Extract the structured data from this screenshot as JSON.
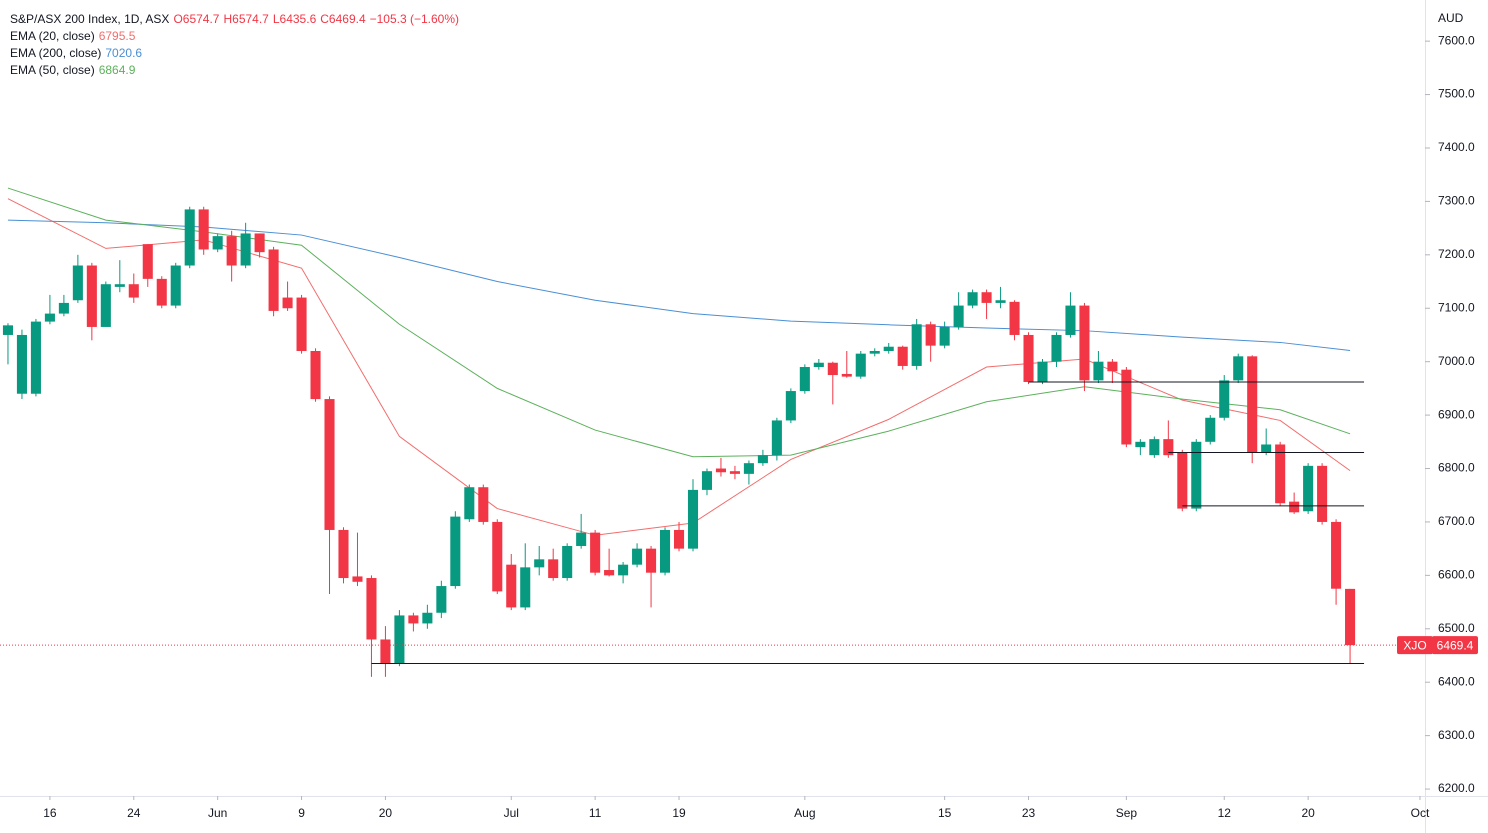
{
  "chart_data": {
    "type": "candlestick",
    "title": "S&P/ASX 200 Index, 1D, ASX",
    "ohlc_labels": [
      "O6574.7",
      "H6574.7",
      "L6435.6",
      "C6469.4",
      "−105.3 (−1.60%)"
    ],
    "symbol": "XJO",
    "y_unit": "AUD",
    "up_color": "#089981",
    "down_color": "#f23645",
    "grid": false,
    "xlim": [
      -0.57,
      101.36
    ],
    "ylim": [
      6187,
      7677
    ],
    "yticks": [
      {
        "value": 6200,
        "label": "6200.0"
      },
      {
        "value": 6300,
        "label": "6300.0"
      },
      {
        "value": 6400,
        "label": "6400.0"
      },
      {
        "value": 6500,
        "label": "6500.0"
      },
      {
        "value": 6600,
        "label": "6600.0"
      },
      {
        "value": 6700,
        "label": "6700.0"
      },
      {
        "value": 6800,
        "label": "6800.0"
      },
      {
        "value": 6900,
        "label": "6900.0"
      },
      {
        "value": 7000,
        "label": "7000.0"
      },
      {
        "value": 7100,
        "label": "7100.0"
      },
      {
        "value": 7200,
        "label": "7200.0"
      },
      {
        "value": 7300,
        "label": "7300.0"
      },
      {
        "value": 7400,
        "label": "7400.0"
      },
      {
        "value": 7500,
        "label": "7500.0"
      },
      {
        "value": 7600,
        "label": "7600.0"
      }
    ],
    "xticks": [
      {
        "value": 3,
        "label": "16"
      },
      {
        "value": 9,
        "label": "24"
      },
      {
        "value": 15,
        "label": "Jun"
      },
      {
        "value": 21,
        "label": "9"
      },
      {
        "value": 27,
        "label": "20"
      },
      {
        "value": 36,
        "label": "Jul"
      },
      {
        "value": 42,
        "label": "11"
      },
      {
        "value": 48,
        "label": "19"
      },
      {
        "value": 57,
        "label": "Aug"
      },
      {
        "value": 67,
        "label": "15"
      },
      {
        "value": 73,
        "label": "23"
      },
      {
        "value": 80,
        "label": "Sep"
      },
      {
        "value": 87,
        "label": "12"
      },
      {
        "value": 93,
        "label": "20"
      },
      {
        "value": 101,
        "label": "Oct"
      }
    ],
    "ohlc": [
      [
        7050,
        7072,
        6995,
        7068
      ],
      [
        6940,
        7060,
        6930,
        7050
      ],
      [
        6940,
        7080,
        6935,
        7075
      ],
      [
        7075,
        7125,
        7070,
        7090
      ],
      [
        7090,
        7125,
        7085,
        7110
      ],
      [
        7115,
        7200,
        7110,
        7180
      ],
      [
        7180,
        7185,
        7040,
        7065
      ],
      [
        7065,
        7150,
        7065,
        7145
      ],
      [
        7140,
        7190,
        7130,
        7145
      ],
      [
        7145,
        7165,
        7110,
        7120
      ],
      [
        7220,
        7220,
        7140,
        7155
      ],
      [
        7155,
        7160,
        7100,
        7105
      ],
      [
        7105,
        7185,
        7100,
        7180
      ],
      [
        7180,
        7290,
        7175,
        7285
      ],
      [
        7285,
        7290,
        7200,
        7210
      ],
      [
        7210,
        7240,
        7205,
        7235
      ],
      [
        7235,
        7245,
        7150,
        7180
      ],
      [
        7180,
        7260,
        7175,
        7240
      ],
      [
        7240,
        7240,
        7195,
        7205
      ],
      [
        7210,
        7215,
        7085,
        7095
      ],
      [
        7120,
        7150,
        7095,
        7100
      ],
      [
        7120,
        7125,
        7015,
        7020
      ],
      [
        7020,
        7025,
        6925,
        6930
      ],
      [
        6930,
        6935,
        6565,
        6685
      ],
      [
        6685,
        6690,
        6585,
        6595
      ],
      [
        6598,
        6680,
        6580,
        6588
      ],
      [
        6595,
        6600,
        6410,
        6480
      ],
      [
        6480,
        6505,
        6410,
        6435
      ],
      [
        6435,
        6535,
        6430,
        6525
      ],
      [
        6525,
        6530,
        6495,
        6510
      ],
      [
        6510,
        6545,
        6500,
        6530
      ],
      [
        6530,
        6590,
        6520,
        6580
      ],
      [
        6580,
        6720,
        6575,
        6710
      ],
      [
        6705,
        6770,
        6700,
        6765
      ],
      [
        6765,
        6770,
        6695,
        6700
      ],
      [
        6700,
        6705,
        6565,
        6570
      ],
      [
        6620,
        6640,
        6535,
        6540
      ],
      [
        6540,
        6660,
        6535,
        6615
      ],
      [
        6615,
        6655,
        6600,
        6630
      ],
      [
        6630,
        6650,
        6590,
        6595
      ],
      [
        6595,
        6660,
        6590,
        6655
      ],
      [
        6655,
        6715,
        6650,
        6680
      ],
      [
        6680,
        6685,
        6600,
        6605
      ],
      [
        6610,
        6650,
        6598,
        6600
      ],
      [
        6600,
        6625,
        6585,
        6620
      ],
      [
        6620,
        6660,
        6615,
        6650
      ],
      [
        6650,
        6655,
        6540,
        6605
      ],
      [
        6605,
        6690,
        6600,
        6685
      ],
      [
        6685,
        6700,
        6645,
        6650
      ],
      [
        6650,
        6780,
        6645,
        6760
      ],
      [
        6760,
        6800,
        6750,
        6795
      ],
      [
        6800,
        6820,
        6785,
        6793
      ],
      [
        6795,
        6805,
        6780,
        6790
      ],
      [
        6790,
        6815,
        6770,
        6810
      ],
      [
        6810,
        6835,
        6805,
        6825
      ],
      [
        6825,
        6895,
        6815,
        6890
      ],
      [
        6890,
        6950,
        6885,
        6945
      ],
      [
        6945,
        6995,
        6940,
        6990
      ],
      [
        6990,
        7005,
        6985,
        6998
      ],
      [
        6998,
        7000,
        6920,
        6975
      ],
      [
        6977,
        7020,
        6970,
        6972
      ],
      [
        6972,
        7020,
        6968,
        7015
      ],
      [
        7015,
        7025,
        7010,
        7020
      ],
      [
        7020,
        7035,
        7015,
        7028
      ],
      [
        7028,
        7030,
        6985,
        6992
      ],
      [
        6992,
        7080,
        6985,
        7070
      ],
      [
        7070,
        7075,
        7000,
        7030
      ],
      [
        7030,
        7075,
        7025,
        7065
      ],
      [
        7065,
        7130,
        7060,
        7105
      ],
      [
        7105,
        7135,
        7100,
        7130
      ],
      [
        7130,
        7135,
        7080,
        7110
      ],
      [
        7110,
        7140,
        7100,
        7115
      ],
      [
        7112,
        7115,
        7040,
        7050
      ],
      [
        7050,
        7055,
        6958,
        6962
      ],
      [
        6962,
        7005,
        6958,
        7000
      ],
      [
        7000,
        7055,
        6990,
        7050
      ],
      [
        7050,
        7130,
        7045,
        7105
      ],
      [
        7105,
        7110,
        6945,
        6965
      ],
      [
        6965,
        7020,
        6960,
        7000
      ],
      [
        7000,
        7005,
        6960,
        6982
      ],
      [
        6985,
        6990,
        6840,
        6845
      ],
      [
        6840,
        6855,
        6825,
        6850
      ],
      [
        6825,
        6860,
        6820,
        6855
      ],
      [
        6855,
        6890,
        6820,
        6825
      ],
      [
        6830,
        6835,
        6720,
        6725
      ],
      [
        6725,
        6855,
        6720,
        6850
      ],
      [
        6850,
        6900,
        6845,
        6895
      ],
      [
        6895,
        6975,
        6890,
        6965
      ],
      [
        6965,
        7015,
        6960,
        7010
      ],
      [
        7010,
        7012,
        6810,
        6830
      ],
      [
        6830,
        6875,
        6825,
        6845
      ],
      [
        6845,
        6850,
        6730,
        6735
      ],
      [
        6738,
        6755,
        6715,
        6718
      ],
      [
        6720,
        6810,
        6715,
        6805
      ],
      [
        6805,
        6810,
        6695,
        6700
      ],
      [
        6700,
        6705,
        6545,
        6575
      ],
      [
        6574.7,
        6574.7,
        6435.6,
        6469.4
      ]
    ],
    "series": [
      {
        "name": "EMA (20, close)",
        "color": "#f26d6d",
        "last_value": 6795.5,
        "x": [
          0,
          7,
          14,
          21,
          28,
          35,
          42,
          49,
          56,
          63,
          70,
          77,
          84,
          91,
          96
        ],
        "values": [
          7305,
          7212,
          7228,
          7175,
          6860,
          6725,
          6675,
          6698,
          6817,
          6892,
          6990,
          7005,
          6928,
          6890,
          6796
        ]
      },
      {
        "name": "EMA (200, close)",
        "color": "#4a8fd4",
        "last_value": 7020.6,
        "x": [
          0,
          7,
          14,
          21,
          28,
          35,
          42,
          49,
          56,
          63,
          70,
          77,
          84,
          91,
          96
        ],
        "values": [
          7265,
          7260,
          7252,
          7237,
          7195,
          7150,
          7115,
          7090,
          7076,
          7069,
          7063,
          7058,
          7046,
          7036,
          7021
        ]
      },
      {
        "name": "EMA (50, close)",
        "color": "#5cb05c",
        "last_value": 6864.9,
        "x": [
          0,
          7,
          14,
          21,
          28,
          35,
          42,
          49,
          56,
          63,
          70,
          77,
          84,
          91,
          96
        ],
        "values": [
          7325,
          7265,
          7243,
          7218,
          7070,
          6950,
          6872,
          6822,
          6825,
          6870,
          6925,
          6953,
          6930,
          6910,
          6865
        ]
      }
    ],
    "levels": [
      {
        "value": 6435,
        "from": 26,
        "to": 97
      },
      {
        "value": 6962,
        "from": 73,
        "to": 97
      },
      {
        "value": 6830,
        "from": 83,
        "to": 97
      },
      {
        "value": 6730,
        "from": 84,
        "to": 97
      }
    ]
  }
}
